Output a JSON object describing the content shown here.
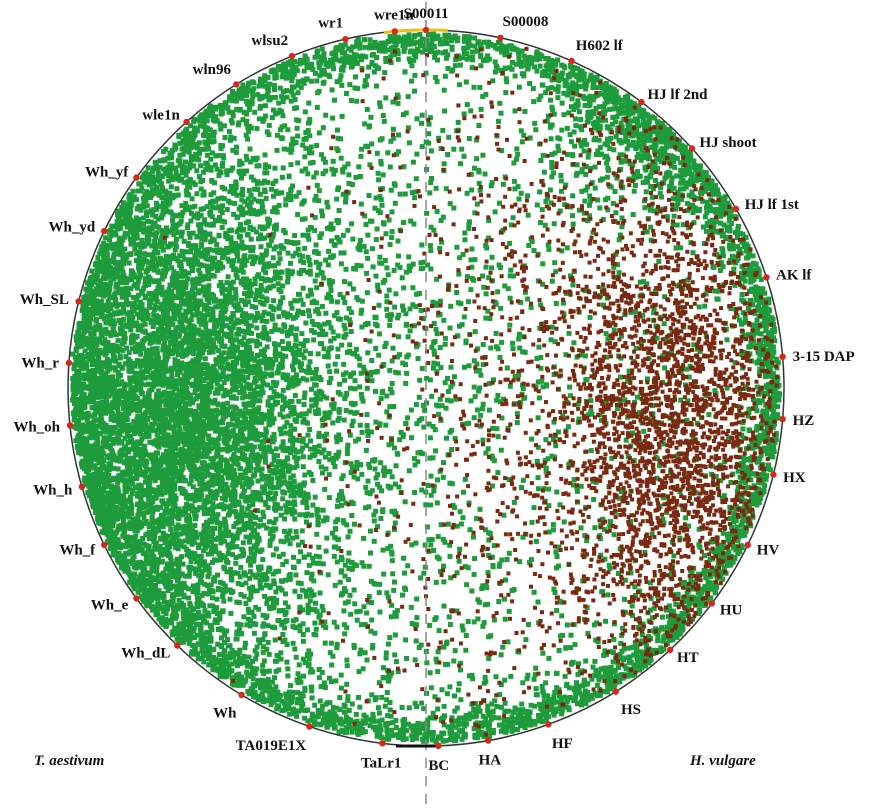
{
  "colors": {
    "wheat": "#1e9c3c",
    "barley": "#7a2a10",
    "library": "#d6271f",
    "ring": "#333333",
    "ring_accent": "#e6c21a",
    "axis": "#888888"
  },
  "species": {
    "left": "T. aestivum",
    "right": "H. vulgare"
  },
  "libraries": [
    {
      "name": "S00011",
      "angle": 0
    },
    {
      "name": "S00008",
      "angle": 12
    },
    {
      "name": "H602 lf",
      "angle": 24
    },
    {
      "name": "HJ lf 2nd",
      "angle": 37
    },
    {
      "name": "HJ shoot",
      "angle": 48
    },
    {
      "name": "HJ lf 1st",
      "angle": 60
    },
    {
      "name": "AK lf",
      "angle": 72
    },
    {
      "name": "3-15  DAP",
      "angle": 85
    },
    {
      "name": "HZ",
      "angle": 95
    },
    {
      "name": "HX",
      "angle": 104
    },
    {
      "name": "HV",
      "angle": 116
    },
    {
      "name": "HU",
      "angle": 127
    },
    {
      "name": "HT",
      "angle": 137
    },
    {
      "name": "HS",
      "angle": 148
    },
    {
      "name": "HF",
      "angle": 160
    },
    {
      "name": "HA",
      "angle": 170
    },
    {
      "name": "BC",
      "angle": 178
    },
    {
      "name": "TaLr1",
      "angle": 187
    },
    {
      "name": "TA019E1X",
      "angle": 199
    },
    {
      "name": "Wh",
      "angle": 211
    },
    {
      "name": "Wh_dL",
      "angle": 224
    },
    {
      "name": "Wh_e",
      "angle": 234
    },
    {
      "name": "Wh_f",
      "angle": 244
    },
    {
      "name": "Wh_h",
      "angle": 254
    },
    {
      "name": "Wh_oh",
      "angle": 264
    },
    {
      "name": "Wh_r",
      "angle": 274
    },
    {
      "name": "Wh_SL",
      "angle": 284
    },
    {
      "name": "Wh_yd",
      "angle": 296
    },
    {
      "name": "Wh_yf",
      "angle": 306
    },
    {
      "name": "wle1n",
      "angle": 318
    },
    {
      "name": "wln96",
      "angle": 328
    },
    {
      "name": "wlsu2",
      "angle": 338
    },
    {
      "name": "wr1",
      "angle": 347
    },
    {
      "name": "wre1n",
      "angle": 355
    }
  ]
}
